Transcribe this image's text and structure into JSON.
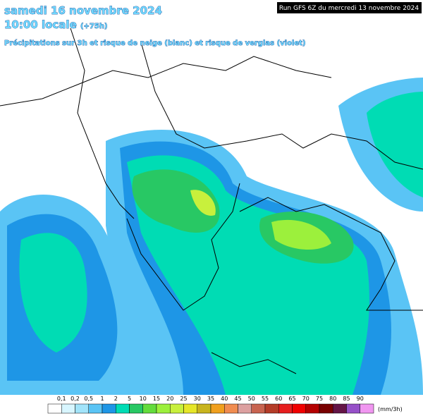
{
  "header": {
    "date": "samedi 16 novembre 2024",
    "time": "10:00 locale",
    "offset": "(+75h)",
    "subtitle": "Précipitations sur 3h et risque de neige (blanc) et risque de verglas (violet)",
    "run": "Run GFS 6Z du mercredi 13 novembre 2024"
  },
  "legend": {
    "colors": [
      "#ffffff",
      "#d8f6ff",
      "#a2e4fa",
      "#5ac4f5",
      "#1e96e6",
      "#00dcb4",
      "#28c864",
      "#64dc3c",
      "#9cf03c",
      "#c8f03c",
      "#e6e628",
      "#c8b41e",
      "#f0a01e",
      "#f08c50",
      "#dca0a0",
      "#c86450",
      "#b43c28",
      "#e61e1e",
      "#f00000",
      "#b40000",
      "#780000",
      "#641446",
      "#9650c8",
      "#f096f0"
    ],
    "labels": [
      "0,1",
      "0,2",
      "0,5",
      "1",
      "2",
      "5",
      "10",
      "15",
      "20",
      "25",
      "30",
      "35",
      "40",
      "45",
      "50",
      "55",
      "60",
      "65",
      "70",
      "75",
      "80",
      "85",
      "90"
    ],
    "unit": "(mm/3h)"
  }
}
